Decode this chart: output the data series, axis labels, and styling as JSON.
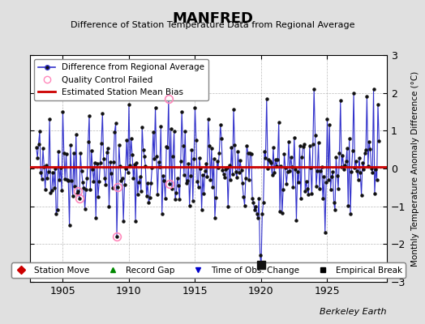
{
  "title": "MANFRED",
  "subtitle": "Difference of Station Temperature Data from Regional Average",
  "ylabel": "Monthly Temperature Anomaly Difference (°C)",
  "xlim": [
    1902.5,
    1929.5
  ],
  "ylim": [
    -3,
    3
  ],
  "yticks": [
    -3,
    -2,
    -1,
    0,
    1,
    2,
    3
  ],
  "xticks": [
    1905,
    1910,
    1915,
    1920,
    1925
  ],
  "bias_value": 0.05,
  "background_color": "#e0e0e0",
  "plot_bg_color": "#ffffff",
  "line_color": "#3333cc",
  "bias_color": "#cc0000",
  "dot_color": "#111111",
  "berkeley_earth_text": "Berkeley Earth",
  "seed": 42,
  "n_months": 312,
  "start_year": 1903.0,
  "qc_failed_indices": [
    38,
    39,
    73,
    74,
    120,
    121
  ],
  "empirical_break_indices": [
    204
  ]
}
